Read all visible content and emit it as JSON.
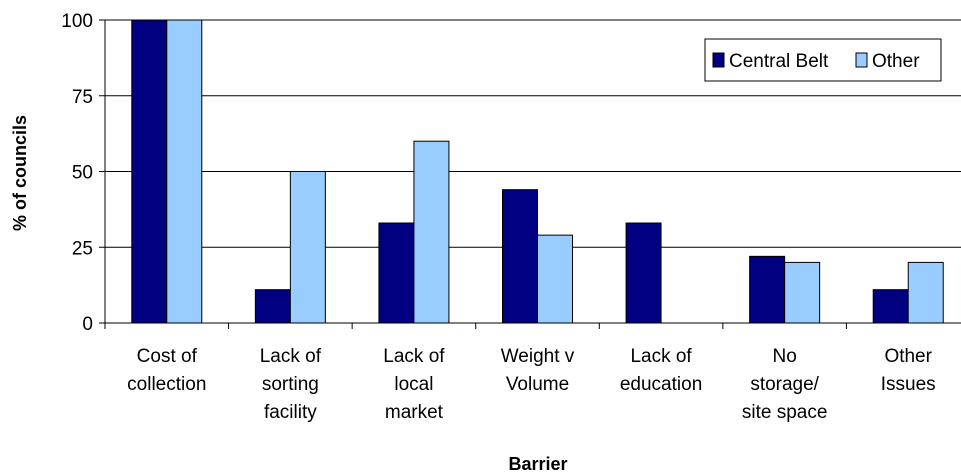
{
  "chart_data": {
    "type": "bar",
    "xlabel": "Barrier",
    "ylabel": "% of councils",
    "ylim": [
      0,
      100
    ],
    "yticks": [
      0,
      25,
      50,
      75,
      100
    ],
    "grid": true,
    "legend_position": "top-right",
    "categories": [
      [
        "Cost of",
        "collection"
      ],
      [
        "Lack of",
        "sorting",
        "facility"
      ],
      [
        "Lack of",
        "local",
        "market"
      ],
      [
        "Weight v",
        "Volume"
      ],
      [
        "Lack of",
        "education"
      ],
      [
        "No",
        "storage/",
        "site space"
      ],
      [
        "Other",
        "Issues"
      ]
    ],
    "series": [
      {
        "name": "Central Belt",
        "color": "#000080",
        "values": [
          100,
          11,
          33,
          44,
          33,
          22,
          11
        ]
      },
      {
        "name": "Other",
        "color": "#99CCFF",
        "values": [
          100,
          50,
          60,
          29,
          0,
          20,
          20
        ]
      }
    ]
  }
}
